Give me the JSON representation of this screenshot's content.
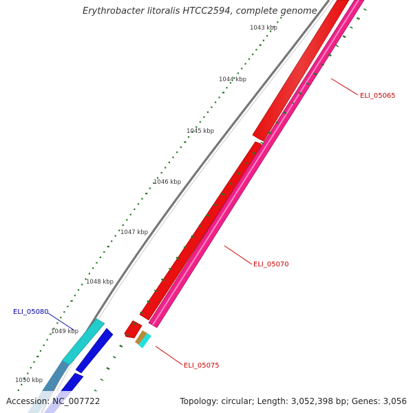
{
  "title": "Erythrobacter litoralis HTCC2594, complete genome",
  "accession": "Accession: NC_007722",
  "summary": "Topology: circular; Length: 3,052,398 bp; Genes: 3,056",
  "ticks": [
    "1043 kbp",
    "1044 kbp",
    "1045 kbp",
    "1046 kbp",
    "1047 kbp",
    "1048 kbp",
    "1049 kbp",
    "1050 kbp"
  ],
  "genes": [
    {
      "label": "ELI_05065",
      "color": "#cc0000"
    },
    {
      "label": "ELI_05070",
      "color": "#cc0000"
    },
    {
      "label": "ELI_05075",
      "color": "#cc0000"
    },
    {
      "label": "ELI_05080",
      "color": "#0000aa"
    }
  ],
  "colors": {
    "backbone": "#8a8a8a",
    "forward_strand": "#ee1111",
    "reverse_strand": "#ee2a8a",
    "cds_blue": "#1111dd",
    "cds_cyan": "#22d6d6",
    "tick": "#227722"
  }
}
